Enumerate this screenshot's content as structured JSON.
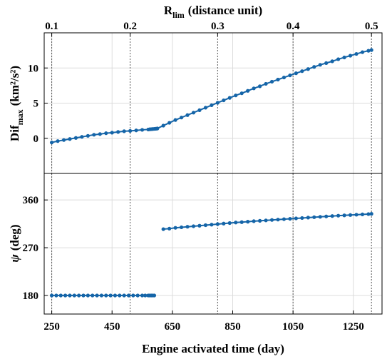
{
  "chart_data": [
    {
      "type": "line",
      "panel": "top",
      "ylabel": {
        "main": "Dif",
        "sub": "max",
        "unit": "(km²/s²)"
      },
      "top_axis": {
        "label": {
          "main": "R",
          "sub": "lim",
          "unit": "(distance unit)"
        },
        "ticks": [
          "0.1",
          "0.2",
          "0.3",
          "0.4",
          "0.5"
        ],
        "tick_x_days": [
          250,
          510,
          800,
          1050,
          1310
        ]
      },
      "xlim": [
        225,
        1345
      ],
      "ylim": [
        -5,
        15
      ],
      "yticks": [
        0,
        5,
        10
      ],
      "grid": true,
      "color": "#1565a8",
      "series": [
        {
          "x": [
            250,
            270,
            290,
            310,
            330,
            350,
            370,
            390,
            410,
            430,
            450,
            470,
            490,
            510,
            530,
            550,
            570,
            575,
            580,
            585,
            590,
            595,
            600
          ],
          "y": [
            -0.6,
            -0.4,
            -0.25,
            -0.1,
            0.05,
            0.2,
            0.35,
            0.5,
            0.6,
            0.72,
            0.8,
            0.9,
            1.0,
            1.05,
            1.12,
            1.2,
            1.25,
            1.28,
            1.3,
            1.32,
            1.34,
            1.36,
            1.38
          ]
        },
        {
          "x": [
            600,
            620,
            640,
            660,
            680,
            700,
            720,
            740,
            760,
            780,
            800,
            820,
            840,
            860,
            880,
            900,
            920,
            940,
            960,
            980,
            1000,
            1020,
            1040,
            1060,
            1080,
            1100,
            1120,
            1140,
            1160,
            1180,
            1200,
            1220,
            1240,
            1260,
            1280,
            1300,
            1310
          ],
          "y": [
            1.4,
            1.8,
            2.2,
            2.6,
            2.95,
            3.3,
            3.65,
            4.0,
            4.35,
            4.7,
            5.05,
            5.4,
            5.75,
            6.1,
            6.4,
            6.75,
            7.1,
            7.4,
            7.75,
            8.05,
            8.35,
            8.65,
            8.95,
            9.25,
            9.55,
            9.85,
            10.15,
            10.45,
            10.7,
            10.95,
            11.25,
            11.5,
            11.75,
            12.0,
            12.25,
            12.45,
            12.55
          ]
        }
      ]
    },
    {
      "type": "line",
      "panel": "bottom",
      "ylabel": {
        "main": "ψ",
        "unit": "(deg)"
      },
      "xlabel": "Engine activated time (day)",
      "xlim": [
        225,
        1345
      ],
      "ylim": [
        145,
        410
      ],
      "xticks": [
        250,
        450,
        650,
        850,
        1050,
        1250
      ],
      "yticks": [
        180,
        270,
        360
      ],
      "grid": true,
      "color": "#1565a8",
      "series": [
        {
          "x": [
            250,
            265,
            280,
            295,
            310,
            325,
            340,
            355,
            370,
            385,
            400,
            415,
            430,
            445,
            460,
            475,
            490,
            505,
            520,
            535,
            550,
            560,
            570,
            575,
            580,
            585,
            590
          ],
          "y": [
            180,
            180,
            180,
            180,
            180,
            180,
            180,
            180,
            180,
            180,
            180,
            180,
            180,
            180,
            180,
            180,
            180,
            180,
            180,
            180,
            180,
            180,
            180,
            180,
            180,
            180,
            180
          ]
        },
        {
          "x": [
            620,
            640,
            660,
            680,
            700,
            720,
            740,
            760,
            780,
            800,
            820,
            840,
            860,
            880,
            900,
            920,
            940,
            960,
            980,
            1000,
            1020,
            1040,
            1060,
            1080,
            1100,
            1120,
            1140,
            1160,
            1180,
            1200,
            1220,
            1240,
            1260,
            1280,
            1300,
            1310
          ],
          "y": [
            305,
            306,
            307.5,
            308.5,
            309.5,
            310.5,
            311.5,
            312.5,
            313.5,
            314.5,
            315.5,
            316.5,
            317.5,
            318.2,
            319,
            320,
            320.7,
            321.5,
            322.3,
            323,
            323.8,
            324.5,
            325.3,
            326,
            326.8,
            327.5,
            328.2,
            329,
            329.7,
            330.4,
            331,
            331.6,
            332.2,
            332.8,
            333.4,
            333.8
          ]
        }
      ]
    }
  ]
}
